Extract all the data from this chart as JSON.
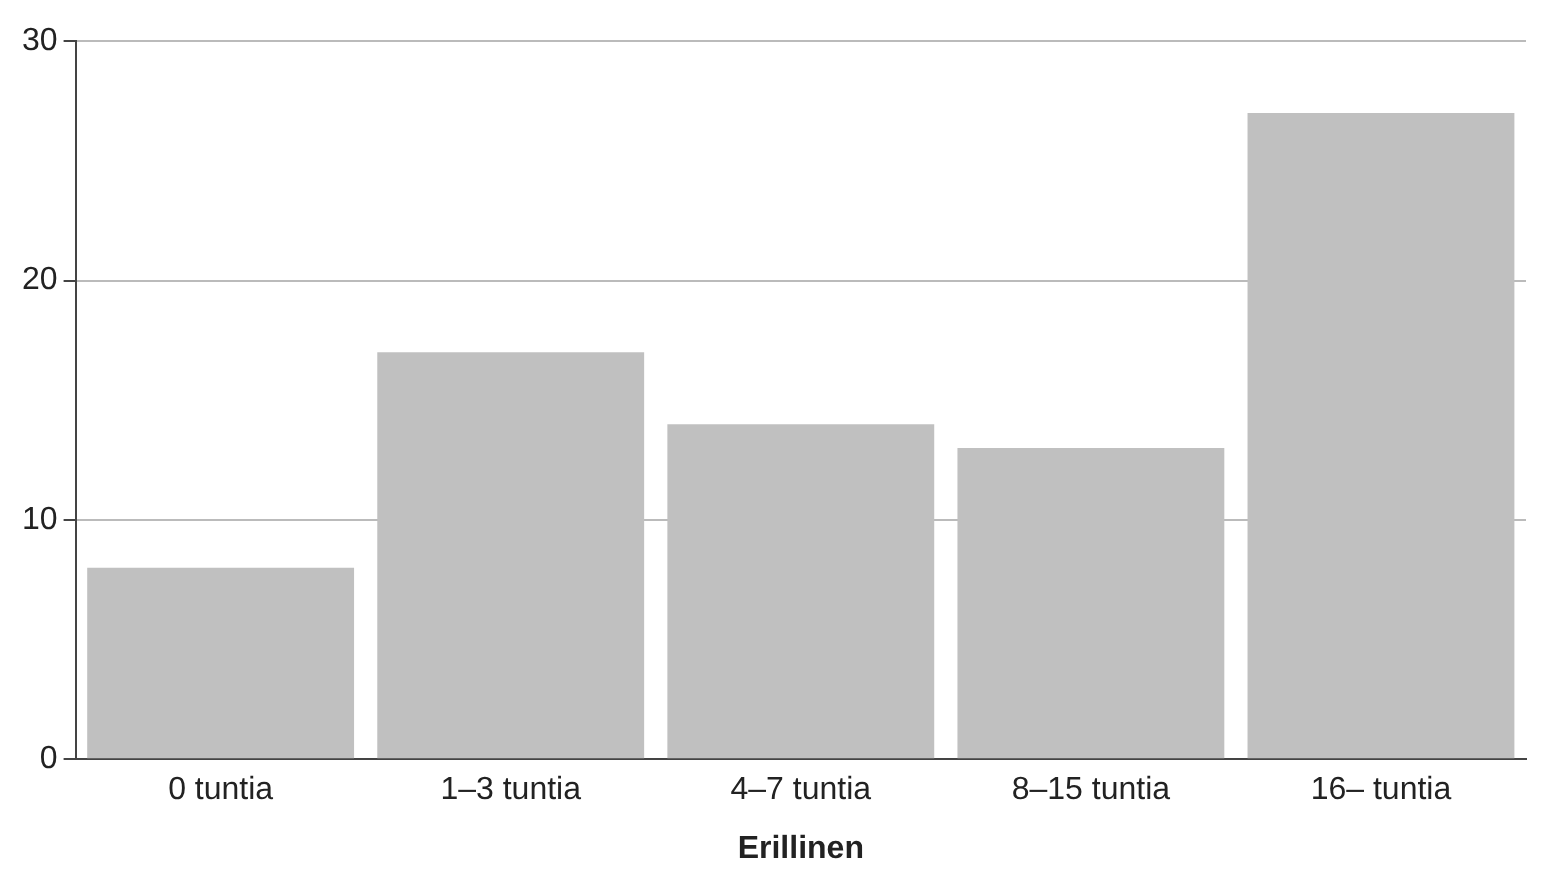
{
  "chart_data": {
    "type": "bar",
    "xlabel": "Erillinen",
    "categories": [
      "0 tuntia",
      "1–3 tuntia",
      "4–7 tuntia",
      "8–15 tuntia",
      "16– tuntia"
    ],
    "values": [
      8,
      17,
      14,
      13,
      27
    ],
    "color": "#c0c0c0",
    "ylim": [
      0,
      30
    ],
    "yticks": [
      0,
      10,
      20,
      30
    ],
    "grid": "y",
    "legend": false
  }
}
